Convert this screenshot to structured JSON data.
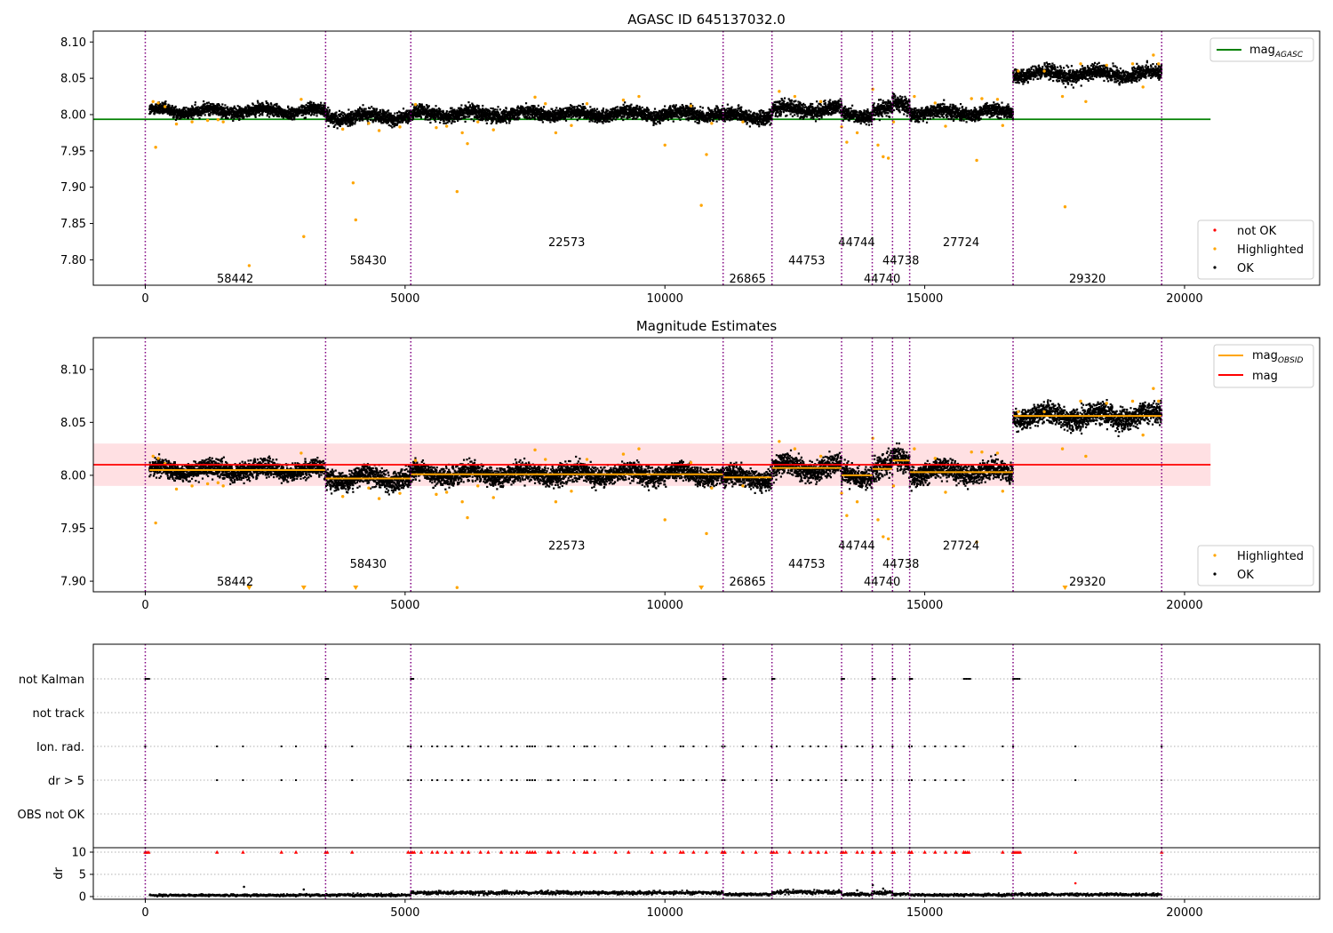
{
  "colors": {
    "obs_line": "#800080",
    "ok": "#000000",
    "highlighted": "#ffa500",
    "not_ok": "#ff0000",
    "mag_agasc": "#008000",
    "mag_obsid": "#ffa500",
    "mag": "#ff0000",
    "band": "#ffdde0",
    "grid": "#b0b0b0"
  },
  "chart_data": [
    {
      "type": "scatter",
      "title": "AGASC ID 645137032.0",
      "xlim": [
        -1000,
        22600
      ],
      "ylim": [
        7.765,
        8.115
      ],
      "xticks": [
        0,
        5000,
        10000,
        15000,
        20000
      ],
      "yticks": [
        7.8,
        7.85,
        7.9,
        7.95,
        8.0,
        8.05,
        8.1
      ],
      "ytick_labels": [
        "7.80",
        "7.85",
        "7.90",
        "7.95",
        "8.00",
        "8.05",
        "8.10"
      ],
      "obs_boundaries": [
        0,
        3470,
        5110,
        11120,
        12060,
        13400,
        13990,
        14380,
        14710,
        16700,
        19560
      ],
      "obs_labels": [
        {
          "x": 1730,
          "y": 7.775,
          "text": "58442"
        },
        {
          "x": 4290,
          "y": 7.8,
          "text": "58430"
        },
        {
          "x": 8110,
          "y": 7.825,
          "text": "22573"
        },
        {
          "x": 11590,
          "y": 7.775,
          "text": "26865"
        },
        {
          "x": 12730,
          "y": 7.8,
          "text": "44753"
        },
        {
          "x": 13690,
          "y": 7.825,
          "text": "44744"
        },
        {
          "x": 14180,
          "y": 7.775,
          "text": "44740"
        },
        {
          "x": 14540,
          "y": 7.8,
          "text": "44738"
        },
        {
          "x": 15700,
          "y": 7.825,
          "text": "27724"
        },
        {
          "x": 18130,
          "y": 7.775,
          "text": "29320"
        }
      ],
      "ok_bands": [
        {
          "x0": 80,
          "x1": 3470,
          "center": 8.005,
          "spread": 0.009
        },
        {
          "x0": 3470,
          "x1": 5110,
          "center": 7.997,
          "spread": 0.01
        },
        {
          "x0": 5110,
          "x1": 11120,
          "center": 8.001,
          "spread": 0.01
        },
        {
          "x0": 11120,
          "x1": 12060,
          "center": 7.998,
          "spread": 0.01
        },
        {
          "x0": 12060,
          "x1": 13400,
          "center": 8.007,
          "spread": 0.011
        },
        {
          "x0": 13400,
          "x1": 13990,
          "center": 8.0,
          "spread": 0.01
        },
        {
          "x0": 13990,
          "x1": 14380,
          "center": 8.006,
          "spread": 0.012
        },
        {
          "x0": 14380,
          "x1": 14710,
          "center": 8.014,
          "spread": 0.012
        },
        {
          "x0": 14710,
          "x1": 16700,
          "center": 8.003,
          "spread": 0.01
        },
        {
          "x0": 16700,
          "x1": 19560,
          "center": 8.056,
          "spread": 0.011
        }
      ],
      "highlighted_points": [
        [
          150,
          8.018
        ],
        [
          250,
          8.016
        ],
        [
          380,
          8.011
        ],
        [
          600,
          7.987
        ],
        [
          900,
          7.99
        ],
        [
          1200,
          7.992
        ],
        [
          1400,
          7.993
        ],
        [
          1500,
          7.99
        ],
        [
          200,
          7.955
        ],
        [
          2000,
          7.792
        ],
        [
          3050,
          7.832
        ],
        [
          3000,
          8.021
        ],
        [
          3800,
          7.98
        ],
        [
          4000,
          7.906
        ],
        [
          4050,
          7.855
        ],
        [
          4300,
          7.988
        ],
        [
          4500,
          7.978
        ],
        [
          4900,
          7.983
        ],
        [
          5200,
          8.014
        ],
        [
          5600,
          7.982
        ],
        [
          5800,
          7.984
        ],
        [
          6000,
          7.894
        ],
        [
          6100,
          7.975
        ],
        [
          6200,
          7.96
        ],
        [
          6400,
          7.99
        ],
        [
          6700,
          7.979
        ],
        [
          7500,
          8.024
        ],
        [
          7700,
          8.015
        ],
        [
          7900,
          7.975
        ],
        [
          8200,
          7.985
        ],
        [
          8500,
          8.015
        ],
        [
          9200,
          8.02
        ],
        [
          9500,
          8.025
        ],
        [
          10000,
          7.958
        ],
        [
          10500,
          8.012
        ],
        [
          10700,
          7.875
        ],
        [
          10800,
          7.945
        ],
        [
          10900,
          7.988
        ],
        [
          11500,
          7.99
        ],
        [
          12200,
          8.032
        ],
        [
          12500,
          8.025
        ],
        [
          13000,
          8.018
        ],
        [
          13400,
          7.983
        ],
        [
          13500,
          7.962
        ],
        [
          13700,
          7.975
        ],
        [
          14000,
          8.035
        ],
        [
          14100,
          7.958
        ],
        [
          14200,
          7.942
        ],
        [
          14300,
          7.94
        ],
        [
          14400,
          7.99
        ],
        [
          14800,
          8.025
        ],
        [
          15200,
          8.016
        ],
        [
          15400,
          7.984
        ],
        [
          15900,
          8.022
        ],
        [
          16000,
          7.937
        ],
        [
          16100,
          8.022
        ],
        [
          16400,
          8.021
        ],
        [
          16500,
          7.985
        ],
        [
          16800,
          8.06
        ],
        [
          17300,
          8.06
        ],
        [
          17700,
          7.873
        ],
        [
          17650,
          8.025
        ],
        [
          18000,
          8.07
        ],
        [
          18100,
          8.018
        ],
        [
          18500,
          8.068
        ],
        [
          19000,
          8.07
        ],
        [
          19200,
          8.038
        ],
        [
          19400,
          8.082
        ],
        [
          19500,
          8.07
        ]
      ],
      "lines": [
        {
          "name": "mag_AGASC",
          "y": 7.9935,
          "x0": -1000,
          "x1": 20500,
          "color": "#008000"
        }
      ],
      "legend_top": {
        "position": "top-right",
        "entries": [
          {
            "main": "mag",
            "sub": "AGASC",
            "color": "#008000"
          }
        ]
      },
      "legend_bottom": {
        "position": "lower-right",
        "entries": [
          {
            "label": "not OK",
            "color": "#ff0000"
          },
          {
            "label": "Highlighted",
            "color": "#ffa500"
          },
          {
            "label": "OK",
            "color": "#000000"
          }
        ]
      }
    },
    {
      "type": "scatter",
      "title": "Magnitude Estimates",
      "xlim": [
        -1000,
        22600
      ],
      "ylim": [
        7.89,
        8.13
      ],
      "xticks": [
        0,
        5000,
        10000,
        15000,
        20000
      ],
      "yticks": [
        7.9,
        7.95,
        8.0,
        8.05,
        8.1
      ],
      "ytick_labels": [
        "7.90",
        "7.95",
        "8.00",
        "8.05",
        "8.10"
      ],
      "obs_boundaries": [
        0,
        3470,
        5110,
        11120,
        12060,
        13400,
        13990,
        14380,
        14710,
        16700,
        19560
      ],
      "obs_labels": [
        {
          "x": 1730,
          "y": 7.9,
          "text": "58442"
        },
        {
          "x": 4290,
          "y": 7.917,
          "text": "58430"
        },
        {
          "x": 8110,
          "y": 7.934,
          "text": "22573"
        },
        {
          "x": 11590,
          "y": 7.9,
          "text": "26865"
        },
        {
          "x": 12730,
          "y": 7.917,
          "text": "44753"
        },
        {
          "x": 13690,
          "y": 7.934,
          "text": "44744"
        },
        {
          "x": 14180,
          "y": 7.9,
          "text": "44740"
        },
        {
          "x": 14540,
          "y": 7.917,
          "text": "44738"
        },
        {
          "x": 15700,
          "y": 7.934,
          "text": "27724"
        },
        {
          "x": 18130,
          "y": 7.9,
          "text": "29320"
        }
      ],
      "ok_bands": [
        {
          "x0": 80,
          "x1": 3470,
          "center": 8.005,
          "spread": 0.009
        },
        {
          "x0": 3470,
          "x1": 5110,
          "center": 7.997,
          "spread": 0.01
        },
        {
          "x0": 5110,
          "x1": 11120,
          "center": 8.001,
          "spread": 0.01
        },
        {
          "x0": 11120,
          "x1": 12060,
          "center": 7.998,
          "spread": 0.01
        },
        {
          "x0": 12060,
          "x1": 13400,
          "center": 8.007,
          "spread": 0.011
        },
        {
          "x0": 13400,
          "x1": 13990,
          "center": 8.0,
          "spread": 0.01
        },
        {
          "x0": 13990,
          "x1": 14380,
          "center": 8.006,
          "spread": 0.012
        },
        {
          "x0": 14380,
          "x1": 14710,
          "center": 8.014,
          "spread": 0.012
        },
        {
          "x0": 14710,
          "x1": 16700,
          "center": 8.003,
          "spread": 0.01
        },
        {
          "x0": 16700,
          "x1": 19560,
          "center": 8.056,
          "spread": 0.011
        }
      ],
      "highlighted_points": [
        [
          150,
          8.018
        ],
        [
          250,
          8.016
        ],
        [
          380,
          8.011
        ],
        [
          600,
          7.987
        ],
        [
          900,
          7.99
        ],
        [
          1200,
          7.992
        ],
        [
          1400,
          7.993
        ],
        [
          1500,
          7.99
        ],
        [
          200,
          7.955
        ],
        [
          3000,
          8.021
        ],
        [
          3800,
          7.98
        ],
        [
          4300,
          7.988
        ],
        [
          4500,
          7.978
        ],
        [
          4900,
          7.983
        ],
        [
          5200,
          8.014
        ],
        [
          5600,
          7.982
        ],
        [
          5800,
          7.984
        ],
        [
          6000,
          7.894
        ],
        [
          6100,
          7.975
        ],
        [
          6200,
          7.96
        ],
        [
          6400,
          7.99
        ],
        [
          6700,
          7.979
        ],
        [
          7500,
          8.024
        ],
        [
          7700,
          8.015
        ],
        [
          7900,
          7.975
        ],
        [
          8200,
          7.985
        ],
        [
          8500,
          8.015
        ],
        [
          9200,
          8.02
        ],
        [
          9500,
          8.025
        ],
        [
          10000,
          7.958
        ],
        [
          10500,
          8.012
        ],
        [
          10800,
          7.945
        ],
        [
          10900,
          7.988
        ],
        [
          11500,
          7.99
        ],
        [
          12200,
          8.032
        ],
        [
          12500,
          8.025
        ],
        [
          13000,
          8.018
        ],
        [
          13400,
          7.983
        ],
        [
          13500,
          7.962
        ],
        [
          13700,
          7.975
        ],
        [
          14000,
          8.035
        ],
        [
          14100,
          7.958
        ],
        [
          14200,
          7.942
        ],
        [
          14300,
          7.94
        ],
        [
          14400,
          7.99
        ],
        [
          14800,
          8.025
        ],
        [
          15200,
          8.016
        ],
        [
          15400,
          7.984
        ],
        [
          15900,
          8.022
        ],
        [
          16000,
          7.937
        ],
        [
          16100,
          8.022
        ],
        [
          16400,
          8.021
        ],
        [
          16500,
          7.985
        ],
        [
          16800,
          8.06
        ],
        [
          17300,
          8.06
        ],
        [
          17650,
          8.025
        ],
        [
          18000,
          8.07
        ],
        [
          18100,
          8.018
        ],
        [
          18500,
          8.068
        ],
        [
          19000,
          8.07
        ],
        [
          19200,
          8.038
        ],
        [
          19400,
          8.082
        ],
        [
          19500,
          8.07
        ]
      ],
      "below_range_markers": [
        2000,
        3050,
        4050,
        10700,
        17700
      ],
      "band": {
        "x0": -1000,
        "x1": 20500,
        "y0": 7.99,
        "y1": 8.03,
        "color": "#ffdde0"
      },
      "lines": [
        {
          "name": "mag",
          "y": 8.01,
          "x0": -1000,
          "x1": 20500,
          "color": "#ff0000"
        }
      ],
      "obs_mean_segments": [
        {
          "x0": 80,
          "x1": 3470,
          "y": 8.005
        },
        {
          "x0": 3470,
          "x1": 5110,
          "y": 7.997
        },
        {
          "x0": 5110,
          "x1": 11120,
          "y": 8.001
        },
        {
          "x0": 11120,
          "x1": 12060,
          "y": 7.998
        },
        {
          "x0": 12060,
          "x1": 13400,
          "y": 8.007
        },
        {
          "x0": 13400,
          "x1": 13990,
          "y": 8.0
        },
        {
          "x0": 13990,
          "x1": 14380,
          "y": 8.006
        },
        {
          "x0": 14380,
          "x1": 14710,
          "y": 8.014
        },
        {
          "x0": 14710,
          "x1": 16700,
          "y": 8.003
        },
        {
          "x0": 16700,
          "x1": 19560,
          "y": 8.056
        }
      ],
      "legend_top": {
        "position": "top-right",
        "entries": [
          {
            "main": "mag",
            "sub": "OBSID",
            "color": "#ffa500"
          },
          {
            "main": "mag",
            "sub": "",
            "color": "#ff0000"
          }
        ]
      },
      "legend_bottom": {
        "position": "lower-right",
        "entries": [
          {
            "label": "Highlighted",
            "color": "#ffa500"
          },
          {
            "label": "OK",
            "color": "#000000"
          }
        ]
      }
    },
    {
      "type": "scatter",
      "title": "",
      "xlim": [
        -1000,
        22600
      ],
      "xticks": [
        0,
        5000,
        10000,
        15000,
        20000
      ],
      "flag_rows": [
        "not Kalman",
        "not track",
        "Ion. rad.",
        "dr > 5",
        "OBS not OK"
      ],
      "obs_boundaries": [
        0,
        3470,
        5110,
        11120,
        12060,
        13400,
        13990,
        14380,
        14710,
        16700,
        19560
      ],
      "not_kalman": [
        [
          0,
          80
        ],
        [
          3470,
          3520
        ],
        [
          5110,
          5180
        ],
        [
          11120,
          11180
        ],
        [
          12060,
          12120
        ],
        [
          13400,
          13460
        ],
        [
          13990,
          14050
        ],
        [
          14380,
          14440
        ],
        [
          14710,
          14770
        ],
        [
          15750,
          15880
        ],
        [
          16700,
          16850
        ]
      ],
      "ion_rad_x": [
        0,
        1380,
        1880,
        2620,
        2900,
        3470,
        3980,
        5060,
        5110,
        5310,
        5520,
        5620,
        5780,
        5900,
        6100,
        6220,
        6450,
        6600,
        6850,
        7050,
        7150,
        7350,
        7400,
        7450,
        7500,
        7750,
        7800,
        7950,
        8250,
        8450,
        8500,
        8650,
        9050,
        9300,
        9750,
        10000,
        10300,
        10350,
        10550,
        10800,
        11100,
        11150,
        11500,
        11750,
        12050,
        12150,
        12400,
        12650,
        12800,
        12950,
        13100,
        13400,
        13480,
        13700,
        13800,
        14000,
        14150,
        14380,
        14700,
        14750,
        15000,
        15200,
        15400,
        15600,
        15750,
        16500,
        16700,
        17900,
        19560
      ],
      "dr": {
        "ylabel": "dr",
        "ylim": [
          -0.6,
          11
        ],
        "yticks": [
          0,
          5,
          10
        ],
        "ytick_labels": [
          "0",
          "5",
          "10"
        ],
        "segments": [
          {
            "x0": 80,
            "x1": 3470,
            "base": 0.3,
            "spread": 0.25
          },
          {
            "x0": 3470,
            "x1": 5110,
            "base": 0.35,
            "spread": 0.3
          },
          {
            "x0": 5110,
            "x1": 11120,
            "base": 0.85,
            "spread": 0.4
          },
          {
            "x0": 11120,
            "x1": 12060,
            "base": 0.5,
            "spread": 0.3
          },
          {
            "x0": 12060,
            "x1": 13400,
            "base": 1.0,
            "spread": 0.45
          },
          {
            "x0": 13400,
            "x1": 13990,
            "base": 0.5,
            "spread": 0.3
          },
          {
            "x0": 13990,
            "x1": 14380,
            "base": 0.8,
            "spread": 0.5
          },
          {
            "x0": 14380,
            "x1": 14710,
            "base": 0.5,
            "spread": 0.3
          },
          {
            "x0": 14710,
            "x1": 16700,
            "base": 0.4,
            "spread": 0.3
          },
          {
            "x0": 16700,
            "x1": 19560,
            "base": 0.45,
            "spread": 0.3
          }
        ],
        "scattered_points": [
          [
            1900,
            2.2
          ],
          [
            3050,
            1.6
          ],
          [
            13700,
            1.4
          ],
          [
            14000,
            2.6
          ],
          [
            14200,
            1.8
          ]
        ],
        "not_ok_points": [
          [
            17900,
            3.0
          ]
        ]
      }
    }
  ]
}
